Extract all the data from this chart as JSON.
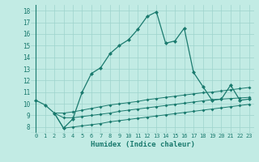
{
  "xlabel": "Humidex (Indice chaleur)",
  "background_color": "#c2ebe4",
  "line_color": "#1a7a6e",
  "grid_color": "#9ed4cc",
  "xlim": [
    -0.5,
    23.5
  ],
  "ylim": [
    7.5,
    18.5
  ],
  "yticks": [
    8,
    9,
    10,
    11,
    12,
    13,
    14,
    15,
    16,
    17,
    18
  ],
  "xticks": [
    0,
    1,
    2,
    3,
    4,
    5,
    6,
    7,
    8,
    9,
    10,
    11,
    12,
    13,
    14,
    15,
    16,
    17,
    18,
    19,
    20,
    21,
    22,
    23
  ],
  "series1_x": [
    0,
    1,
    2,
    3,
    4,
    5,
    6,
    7,
    8,
    9,
    10,
    11,
    12,
    13,
    14,
    15,
    16,
    17,
    18,
    19,
    20,
    21,
    22,
    23
  ],
  "series1_y": [
    10.3,
    9.9,
    9.2,
    7.9,
    8.7,
    11.0,
    12.6,
    13.1,
    14.3,
    15.0,
    15.5,
    16.4,
    17.5,
    17.9,
    15.2,
    15.4,
    16.5,
    12.7,
    11.5,
    10.3,
    10.4,
    11.6,
    10.3,
    10.4
  ],
  "series2_x": [
    2,
    3,
    4,
    5,
    6,
    7,
    8,
    9,
    10,
    11,
    12,
    13,
    14,
    15,
    16,
    17,
    18,
    19,
    20,
    21,
    22,
    23
  ],
  "series2_y": [
    9.2,
    9.2,
    9.3,
    9.45,
    9.6,
    9.75,
    9.9,
    10.0,
    10.1,
    10.2,
    10.35,
    10.45,
    10.55,
    10.65,
    10.75,
    10.85,
    10.95,
    11.0,
    11.1,
    11.2,
    11.3,
    11.4
  ],
  "series3_x": [
    2,
    3,
    4,
    5,
    6,
    7,
    8,
    9,
    10,
    11,
    12,
    13,
    14,
    15,
    16,
    17,
    18,
    19,
    20,
    21,
    22,
    23
  ],
  "series3_y": [
    9.2,
    8.8,
    8.8,
    8.9,
    9.0,
    9.1,
    9.2,
    9.35,
    9.45,
    9.55,
    9.65,
    9.75,
    9.85,
    9.95,
    10.05,
    10.15,
    10.25,
    10.35,
    10.4,
    10.45,
    10.5,
    10.55
  ],
  "series4_x": [
    2,
    3,
    4,
    5,
    6,
    7,
    8,
    9,
    10,
    11,
    12,
    13,
    14,
    15,
    16,
    17,
    18,
    19,
    20,
    21,
    22,
    23
  ],
  "series4_y": [
    9.2,
    7.9,
    8.0,
    8.1,
    8.2,
    8.3,
    8.45,
    8.55,
    8.65,
    8.75,
    8.85,
    8.95,
    9.05,
    9.15,
    9.25,
    9.35,
    9.45,
    9.55,
    9.65,
    9.75,
    9.85,
    9.95
  ]
}
